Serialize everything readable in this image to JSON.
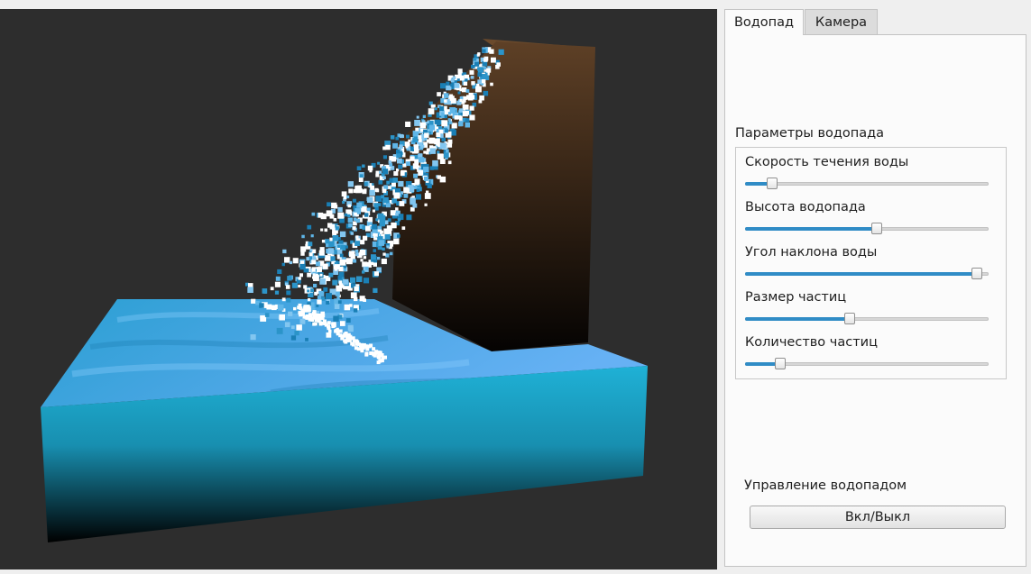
{
  "tabs": [
    {
      "label": "Водопад",
      "active": true
    },
    {
      "label": "Камера",
      "active": false
    }
  ],
  "waterfall_params": {
    "title": "Параметры водопада",
    "sliders": [
      {
        "label": "Скорость течения воды",
        "value": 0.11
      },
      {
        "label": "Высота водопада",
        "value": 0.54
      },
      {
        "label": "Угол наклона воды",
        "value": 0.95
      },
      {
        "label": "Размер частиц",
        "value": 0.43
      },
      {
        "label": "Количество частиц",
        "value": 0.145
      }
    ]
  },
  "control": {
    "title": "Управление водопадом",
    "toggle_label": "Вкл/Выкл"
  },
  "colors": {
    "accent": "#308cc6",
    "viewport_bg": "#2d2d2d",
    "water_top": "#57a9e8",
    "water_side": "#1aa1c6",
    "cliff_top": "#5a3d22"
  }
}
